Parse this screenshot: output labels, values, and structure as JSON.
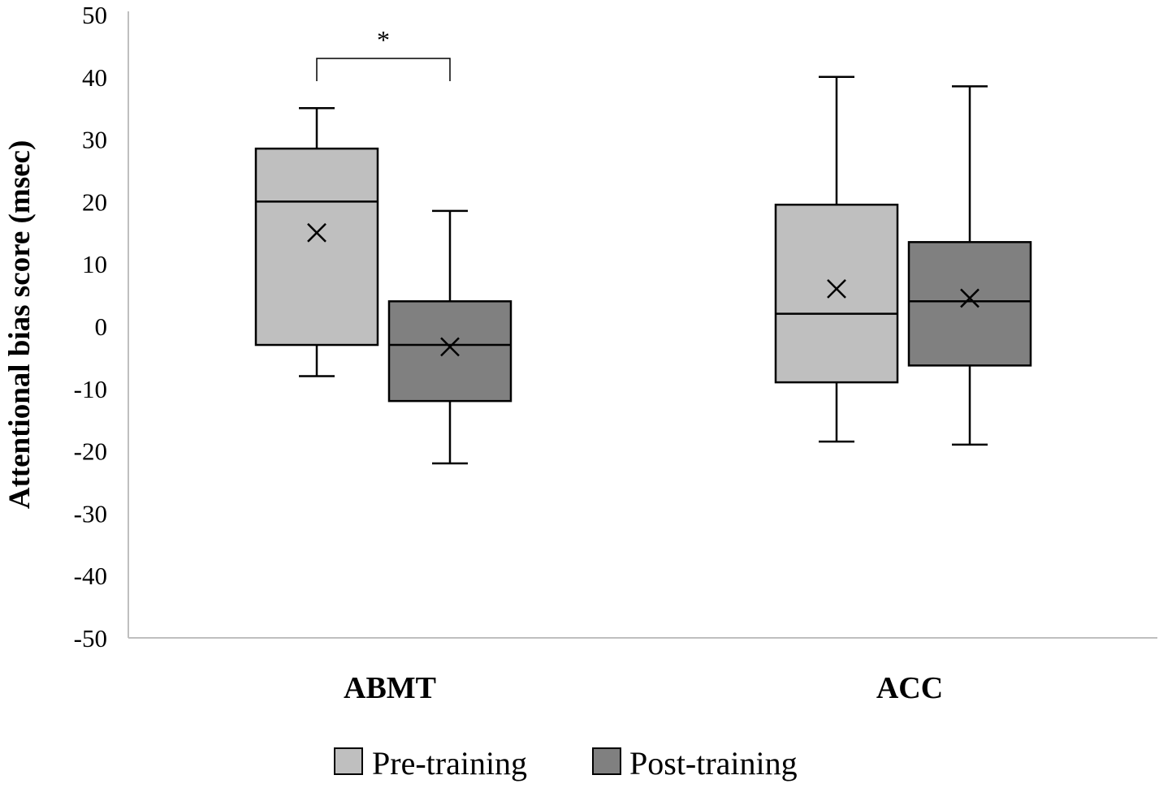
{
  "chart_data": {
    "type": "box",
    "ylabel": "Attentional bias score (msec)",
    "xlabel": "",
    "ylim": [
      -50,
      50
    ],
    "y_ticks": [
      50,
      40,
      30,
      20,
      10,
      0,
      -10,
      -20,
      -30,
      -40,
      -50
    ],
    "y_tick_labels": [
      "50",
      "40",
      "30",
      "20",
      "10",
      "0",
      "-10",
      "-20",
      "-30",
      "-40",
      "-50"
    ],
    "grid": false,
    "legend_position": "bottom",
    "categories": [
      "ABMT",
      "ACC"
    ],
    "series": [
      {
        "name": "Pre-training",
        "color": "#bfbfbf",
        "boxes": [
          {
            "category": "ABMT",
            "min": -8,
            "q1": -3,
            "median": 20,
            "q3": 28.5,
            "max": 35,
            "mean": 15
          },
          {
            "category": "ACC",
            "min": -18.5,
            "q1": -9,
            "median": 2,
            "q3": 19.5,
            "max": 40,
            "mean": 6
          }
        ]
      },
      {
        "name": "Post-training",
        "color": "#808080",
        "boxes": [
          {
            "category": "ABMT",
            "min": -22,
            "q1": -12,
            "median": -3,
            "q3": 4,
            "max": 18.5,
            "mean": -3.3
          },
          {
            "category": "ACC",
            "min": -19,
            "q1": -6.3,
            "median": 4,
            "q3": 13.5,
            "max": 38.5,
            "mean": 4.5
          }
        ]
      }
    ],
    "annotations": [
      {
        "text": "*",
        "category": "ABMT",
        "between": [
          "Pre-training",
          "Post-training"
        ],
        "type": "significance-bracket"
      }
    ]
  }
}
